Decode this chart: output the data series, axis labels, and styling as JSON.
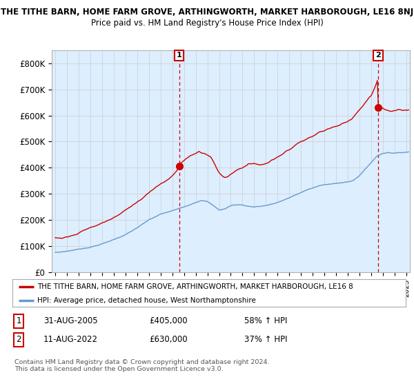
{
  "title": "THE TITHE BARN, HOME FARM GROVE, ARTHINGWORTH, MARKET HARBOROUGH, LE16 8NJ",
  "subtitle": "Price paid vs. HM Land Registry's House Price Index (HPI)",
  "ylim": [
    0,
    850000
  ],
  "yticks": [
    0,
    100000,
    200000,
    300000,
    400000,
    500000,
    600000,
    700000,
    800000
  ],
  "ytick_labels": [
    "£0",
    "£100K",
    "£200K",
    "£300K",
    "£400K",
    "£500K",
    "£600K",
    "£700K",
    "£800K"
  ],
  "red_color": "#cc0000",
  "blue_color": "#6699cc",
  "fill_color": "#ddeeff",
  "sale1_x": 2005.583,
  "sale1_y": 405000,
  "sale2_x": 2022.583,
  "sale2_y": 630000,
  "legend_red_label": "THE TITHE BARN, HOME FARM GROVE, ARTHINGWORTH, MARKET HARBOROUGH, LE16 8",
  "legend_blue_label": "HPI: Average price, detached house, West Northamptonshire",
  "table_row1": [
    "1",
    "31-AUG-2005",
    "£405,000",
    "58% ↑ HPI"
  ],
  "table_row2": [
    "2",
    "11-AUG-2022",
    "£630,000",
    "37% ↑ HPI"
  ],
  "footer": "Contains HM Land Registry data © Crown copyright and database right 2024.\nThis data is licensed under the Open Government Licence v3.0.",
  "background_color": "#ffffff",
  "grid_color": "#cccccc",
  "xlim_left": 1994.7,
  "xlim_right": 2025.3
}
